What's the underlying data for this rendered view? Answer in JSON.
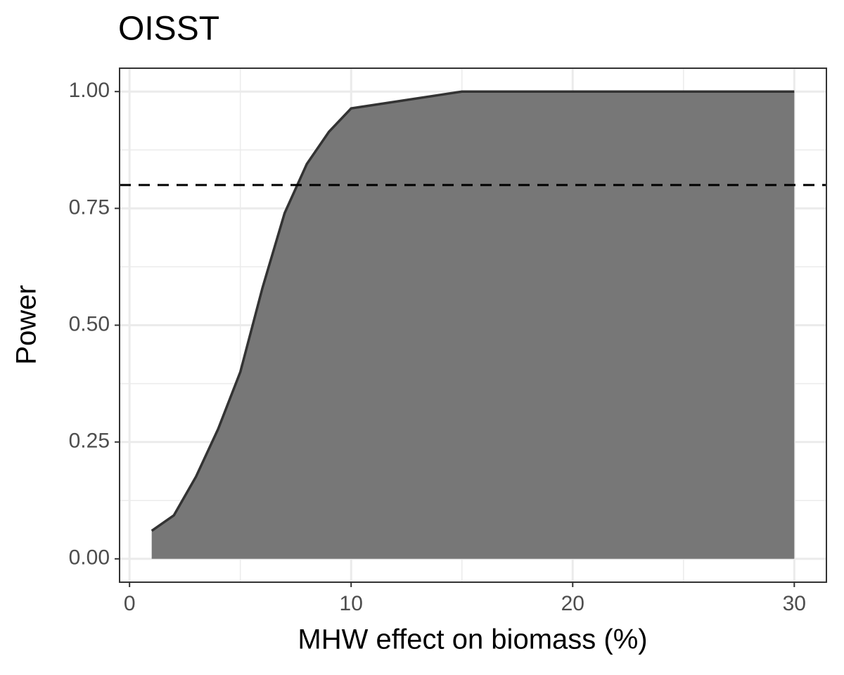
{
  "chart_data": {
    "type": "area",
    "title": "OISST",
    "x_label": "MHW effect on biomass (%)",
    "y_label": "Power",
    "x": [
      1,
      2,
      3,
      4,
      5,
      6,
      7,
      8,
      9,
      10,
      15,
      20,
      25,
      30
    ],
    "values": [
      0.06,
      0.093,
      0.176,
      0.278,
      0.4,
      0.58,
      0.74,
      0.845,
      0.914,
      0.964,
      1.0,
      1.0,
      1.0,
      1.0
    ],
    "color": "#777777",
    "line_color": "#333333",
    "xlim": [
      -0.45,
      31.45
    ],
    "xticks": [
      0,
      10,
      20,
      30
    ],
    "ylim": [
      -0.05,
      1.05
    ],
    "yticks": [
      {
        "value": 0,
        "label": "0.00"
      },
      {
        "value": 0.25,
        "label": "0.25"
      },
      {
        "value": 0.5,
        "label": "0.50"
      },
      {
        "value": 0.75,
        "label": "0.75"
      },
      {
        "value": 1,
        "label": "1.00"
      }
    ],
    "hline": 0.8,
    "grid": true
  }
}
